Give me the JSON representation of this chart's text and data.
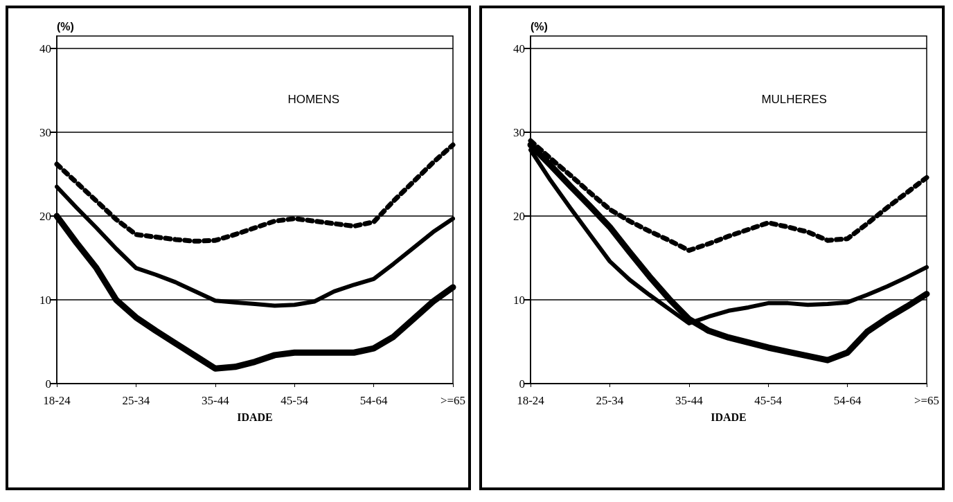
{
  "chart_data": [
    {
      "type": "line",
      "title": "HOMENS",
      "ylabel": "(%)",
      "xlabel": "IDADE",
      "categories": [
        "18-24",
        null,
        null,
        null,
        "25-34",
        null,
        null,
        null,
        "35-44",
        null,
        null,
        null,
        "45-54",
        null,
        null,
        null,
        "54-64",
        null,
        null,
        null,
        ">=65"
      ],
      "ylim": [
        0,
        41.5
      ],
      "yticks": [
        0,
        10,
        20,
        30,
        40
      ],
      "grid": "y",
      "marker": "none",
      "series": [
        {
          "color": "#000000",
          "line_style": "dotted",
          "values": [
            26.2,
            24.0,
            21.8,
            19.6,
            17.8,
            17.5,
            17.2,
            17.0,
            17.1,
            17.8,
            18.6,
            19.4,
            19.7,
            19.4,
            19.1,
            18.8,
            19.3,
            21.8,
            24.1,
            26.4,
            28.5
          ]
        },
        {
          "color": "#000000",
          "line_style": "solid",
          "values": [
            23.5,
            21.0,
            18.6,
            16.1,
            13.8,
            13.0,
            12.1,
            11.0,
            9.9,
            9.7,
            9.5,
            9.3,
            9.4,
            9.8,
            11.0,
            11.8,
            12.5,
            14.3,
            16.2,
            18.1,
            19.7
          ]
        },
        {
          "color": "#000000",
          "line_style": "solid",
          "values": [
            20,
            16.8,
            13.8,
            10.0,
            7.9,
            6.3,
            4.8,
            3.3,
            1.8,
            2.0,
            2.6,
            3.4,
            3.7,
            3.7,
            3.7,
            3.7,
            4.2,
            5.6,
            7.7,
            9.8,
            11.5
          ]
        }
      ]
    },
    {
      "type": "line",
      "title": "MULHERES",
      "ylabel": "(%)",
      "xlabel": "IDADE",
      "categories": [
        "18-24",
        null,
        null,
        null,
        "25-34",
        null,
        null,
        null,
        "35-44",
        null,
        null,
        null,
        "45-54",
        null,
        null,
        null,
        "54-64",
        null,
        null,
        null,
        ">=65"
      ],
      "ylim": [
        0,
        41.5
      ],
      "yticks": [
        0,
        10,
        20,
        30,
        40
      ],
      "grid": "y",
      "marker": "none",
      "series": [
        {
          "color": "#000000",
          "line_style": "dotted",
          "values": [
            29,
            26.9,
            24.9,
            22.8,
            20.8,
            19.4,
            18.2,
            17.1,
            15.9,
            16.7,
            17.6,
            18.4,
            19.2,
            18.7,
            18.1,
            17.1,
            17.3,
            19.1,
            21.0,
            22.8,
            24.6
          ]
        },
        {
          "color": "#000000",
          "line_style": "solid",
          "values": [
            27.9,
            24.3,
            21.0,
            17.8,
            14.6,
            12.4,
            10.6,
            8.9,
            7.2,
            8.0,
            8.7,
            9.1,
            9.6,
            9.6,
            9.4,
            9.5,
            9.7,
            10.6,
            11.6,
            12.7,
            13.9
          ]
        },
        {
          "color": "#000000",
          "line_style": "solid",
          "values": [
            28.5,
            26.1,
            23.6,
            21.2,
            18.7,
            15.7,
            12.8,
            10.1,
            7.7,
            6.3,
            5.5,
            4.9,
            4.3,
            3.8,
            3.3,
            2.8,
            3.7,
            6.2,
            7.8,
            9.2,
            10.7
          ]
        }
      ]
    }
  ]
}
